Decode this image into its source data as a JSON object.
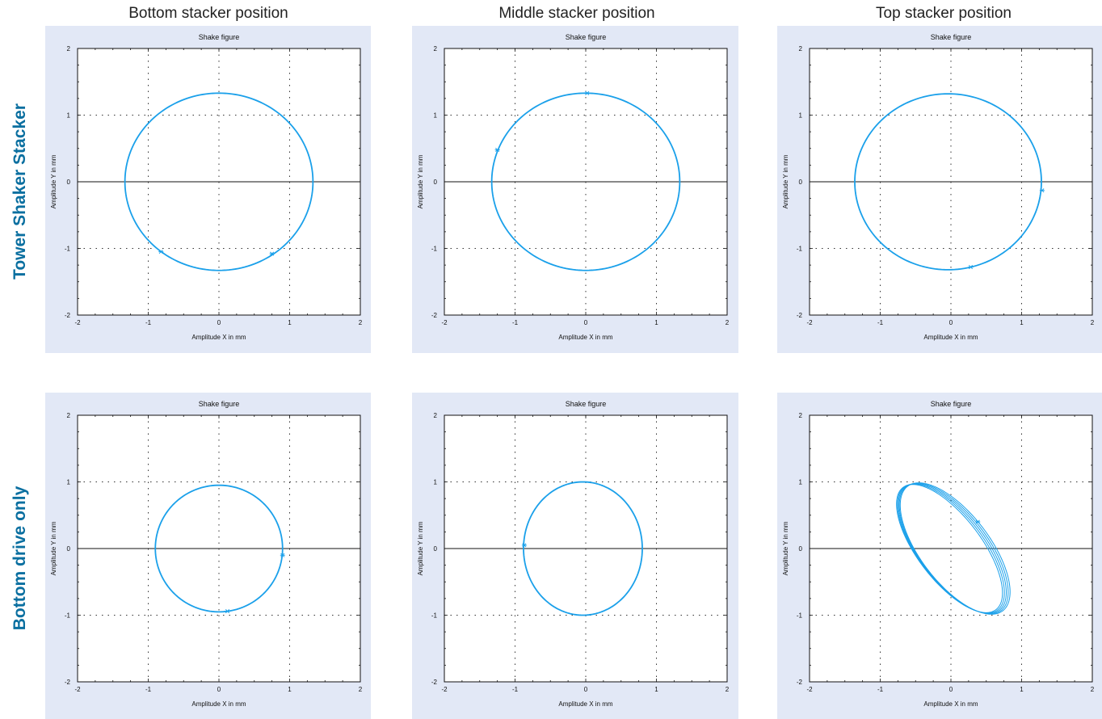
{
  "column_headers": [
    "Bottom stacker position",
    "Middle stacker position",
    "Top stacker position"
  ],
  "row_headers": [
    "Tower Shaker Stacker",
    "Bottom drive only"
  ],
  "colors": {
    "trace": "#1aa0ea",
    "panel_bg": "#e2e8f6",
    "row_header": "#0a6fa0"
  },
  "chart_data": [
    {
      "type": "line",
      "row": "Tower Shaker Stacker",
      "column": "Bottom stacker position",
      "title": "Shake figure",
      "xlabel": "Amplitude X in mm",
      "ylabel": "Amplitude Y in mm",
      "xlim": [
        -2,
        2
      ],
      "ylim": [
        -2,
        2
      ],
      "xticks": [
        -2,
        -1,
        0,
        1,
        2
      ],
      "yticks": [
        -2,
        -1,
        0,
        1,
        2
      ],
      "grid": "dotted",
      "series": [
        {
          "shape": "ellipse",
          "center": [
            0,
            0
          ],
          "rx": 1.33,
          "ry": 1.33,
          "tilt_deg": 0,
          "loops": 1,
          "markers": [
            [
              -0.82,
              -1.05
            ],
            [
              0.75,
              -1.08
            ]
          ]
        }
      ]
    },
    {
      "type": "line",
      "row": "Tower Shaker Stacker",
      "column": "Middle stacker position",
      "title": "Shake figure",
      "xlabel": "Amplitude X in mm",
      "ylabel": "Amplitude Y in mm",
      "xlim": [
        -2,
        2
      ],
      "ylim": [
        -2,
        2
      ],
      "xticks": [
        -2,
        -1,
        0,
        1,
        2
      ],
      "yticks": [
        -2,
        -1,
        0,
        1,
        2
      ],
      "grid": "dotted",
      "series": [
        {
          "shape": "ellipse",
          "center": [
            0,
            0
          ],
          "rx": 1.33,
          "ry": 1.33,
          "tilt_deg": 0,
          "loops": 1,
          "markers": [
            [
              0.02,
              1.33
            ],
            [
              -1.25,
              0.48
            ]
          ]
        }
      ]
    },
    {
      "type": "line",
      "row": "Tower Shaker Stacker",
      "column": "Top stacker position",
      "title": "Shake figure",
      "xlabel": "Amplitude X in mm",
      "ylabel": "Amplitude Y in mm",
      "xlim": [
        -2,
        2
      ],
      "ylim": [
        -2,
        2
      ],
      "xticks": [
        -2,
        -1,
        0,
        1,
        2
      ],
      "yticks": [
        -2,
        -1,
        0,
        1,
        2
      ],
      "grid": "dotted",
      "series": [
        {
          "shape": "ellipse",
          "center": [
            -0.04,
            0
          ],
          "rx": 1.32,
          "ry": 1.32,
          "tilt_deg": 0,
          "loops": 1,
          "markers": [
            [
              0.28,
              -1.28
            ],
            [
              1.29,
              -0.13
            ]
          ]
        }
      ]
    },
    {
      "type": "line",
      "row": "Bottom drive only",
      "column": "Bottom stacker position",
      "title": "Shake figure",
      "xlabel": "Amplitude X in mm",
      "ylabel": "Amplitude Y in mm",
      "xlim": [
        -2,
        2
      ],
      "ylim": [
        -2,
        2
      ],
      "xticks": [
        -2,
        -1,
        0,
        1,
        2
      ],
      "yticks": [
        -2,
        -1,
        0,
        1,
        2
      ],
      "grid": "dotted",
      "series": [
        {
          "shape": "ellipse",
          "center": [
            0,
            0
          ],
          "rx": 0.9,
          "ry": 0.95,
          "tilt_deg": 0,
          "loops": 1,
          "markers": [
            [
              0.12,
              -0.94
            ],
            [
              0.9,
              -0.1
            ]
          ]
        }
      ]
    },
    {
      "type": "line",
      "row": "Bottom drive only",
      "column": "Middle stacker position",
      "title": "Shake figure",
      "xlabel": "Amplitude X in mm",
      "ylabel": "Amplitude Y in mm",
      "xlim": [
        -2,
        2
      ],
      "ylim": [
        -2,
        2
      ],
      "xticks": [
        -2,
        -1,
        0,
        1,
        2
      ],
      "yticks": [
        -2,
        -1,
        0,
        1,
        2
      ],
      "grid": "dotted",
      "series": [
        {
          "shape": "ellipse",
          "center": [
            -0.04,
            0
          ],
          "rx": 0.84,
          "ry": 1.0,
          "tilt_deg": 0,
          "loops": 1,
          "markers": [
            [
              -0.87,
              0.05
            ]
          ]
        }
      ]
    },
    {
      "type": "line",
      "row": "Bottom drive only",
      "column": "Top stacker position",
      "title": "Shake figure",
      "xlabel": "Amplitude X in mm",
      "ylabel": "Amplitude Y in mm",
      "xlim": [
        -2,
        2
      ],
      "ylim": [
        -2,
        2
      ],
      "xticks": [
        -2,
        -1,
        0,
        1,
        2
      ],
      "yticks": [
        -2,
        -1,
        0,
        1,
        2
      ],
      "grid": "dotted",
      "series": [
        {
          "shape": "ellipse",
          "center": [
            0.02,
            0
          ],
          "rx": 0.48,
          "ry": 1.14,
          "tilt_deg": 35,
          "loops": 5,
          "markers": [
            [
              0.38,
              0.4
            ]
          ]
        }
      ]
    }
  ]
}
